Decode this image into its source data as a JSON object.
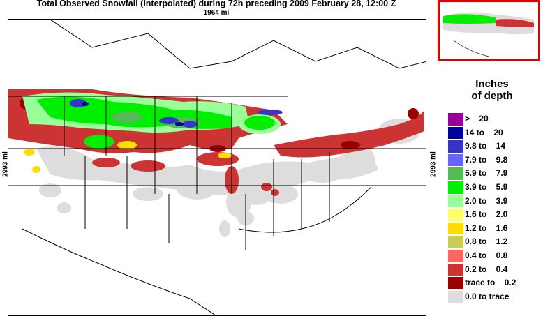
{
  "header": {
    "title": "Total Observed Snowfall (Interpolated) during 72h preceding 2009 February 28, 12:00 Z",
    "distance_top": "1964 mi",
    "distance_left": "2993 mi",
    "distance_right": "2993 mi"
  },
  "legend": {
    "title_line1": "Inches",
    "title_line2": "of depth",
    "items": [
      {
        "label": ">    20",
        "color": "#990099"
      },
      {
        "label": "14 to    20",
        "color": "#00009a"
      },
      {
        "label": "9.8 to    14",
        "color": "#3535cc"
      },
      {
        "label": "7.9 to    9.8",
        "color": "#6666ff"
      },
      {
        "label": "5.9 to    7.9",
        "color": "#55bb55"
      },
      {
        "label": "3.9 to    5.9",
        "color": "#00ee00"
      },
      {
        "label": "2.0 to    3.9",
        "color": "#99ff99"
      },
      {
        "label": "1.6 to    2.0",
        "color": "#ffff66"
      },
      {
        "label": "1.2 to    1.6",
        "color": "#ffdd00"
      },
      {
        "label": "0.8 to    1.2",
        "color": "#cccc55"
      },
      {
        "label": "0.4 to    0.8",
        "color": "#ff6666"
      },
      {
        "label": "0.2 to    0.4",
        "color": "#cc3333"
      },
      {
        "label": "trace to    0.2",
        "color": "#990000"
      },
      {
        "label": "0.0 to trace",
        "color": "#dddddd"
      }
    ]
  },
  "map": {
    "land_color": "#ffffff",
    "trace_color": "#dddddd",
    "border_color": "#000000",
    "inset_border_color": "#e00000"
  }
}
